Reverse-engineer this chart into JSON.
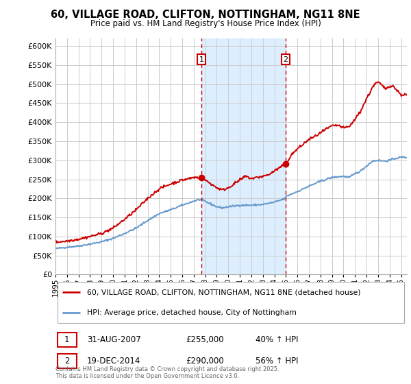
{
  "title": "60, VILLAGE ROAD, CLIFTON, NOTTINGHAM, NG11 8NE",
  "subtitle": "Price paid vs. HM Land Registry's House Price Index (HPI)",
  "red_label": "60, VILLAGE ROAD, CLIFTON, NOTTINGHAM, NG11 8NE (detached house)",
  "blue_label": "HPI: Average price, detached house, City of Nottingham",
  "annotation1": {
    "num": "1",
    "date": "31-AUG-2007",
    "price": "£255,000",
    "pct": "40% ↑ HPI"
  },
  "annotation2": {
    "num": "2",
    "date": "19-DEC-2014",
    "price": "£290,000",
    "pct": "56% ↑ HPI"
  },
  "footnote": "Contains HM Land Registry data © Crown copyright and database right 2025.\nThis data is licensed under the Open Government Licence v3.0.",
  "red_color": "#cc0000",
  "blue_color": "#6699cc",
  "highlight_color": "#ddeeff",
  "vline_color": "#cc0000",
  "ylim": [
    0,
    620000
  ],
  "yticks": [
    0,
    50000,
    100000,
    150000,
    200000,
    250000,
    300000,
    350000,
    400000,
    450000,
    500000,
    550000,
    600000
  ],
  "sale1_x": 2007.67,
  "sale2_x": 2014.97,
  "sale1_price": 255000,
  "sale2_price": 290000,
  "xmin": 1995.0,
  "xmax": 2025.5
}
